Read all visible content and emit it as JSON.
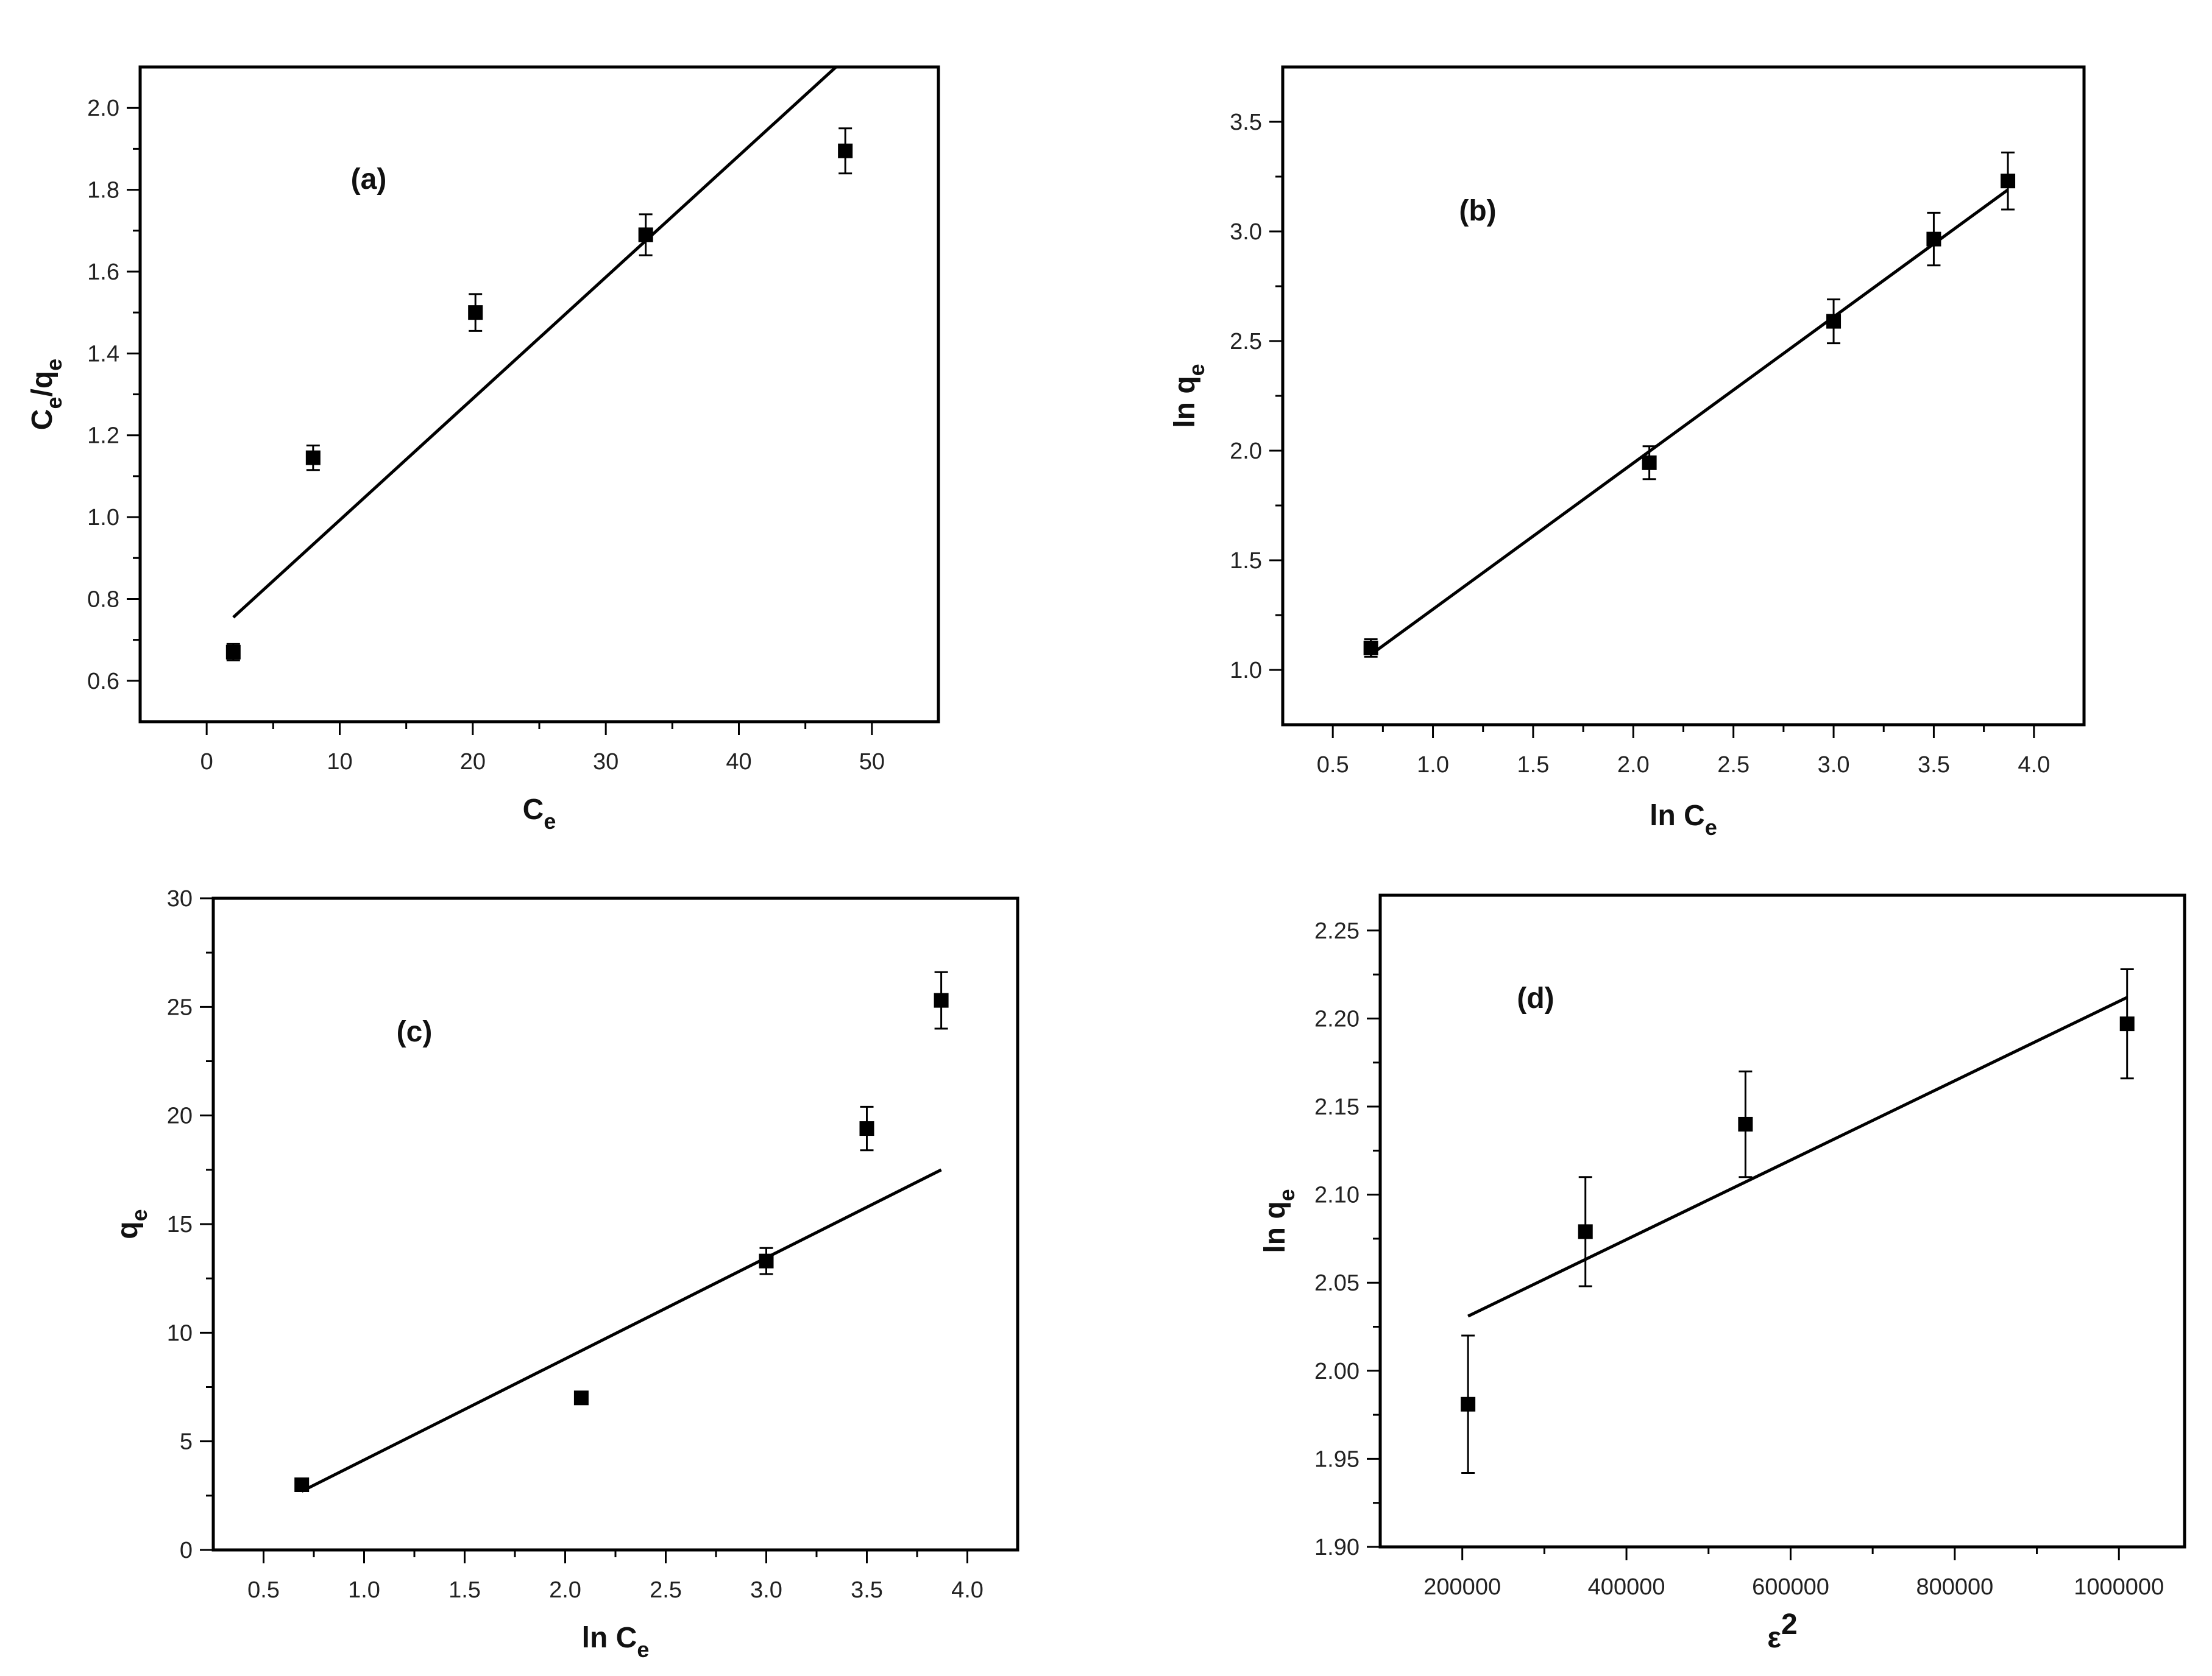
{
  "chart_data": [
    {
      "id": "a",
      "type": "scatter",
      "panel_label": "(a)",
      "xlabel": {
        "main": "C",
        "sub": "e",
        "sup": ""
      },
      "ylabel": {
        "parts": [
          {
            "t": "C",
            "s": "n"
          },
          {
            "t": "e",
            "s": "sub"
          },
          {
            "t": "/q",
            "s": "n"
          },
          {
            "t": "e",
            "s": "sub"
          }
        ]
      },
      "xlim": [
        -5,
        55
      ],
      "ylim": [
        0.5,
        2.1
      ],
      "xticks": [
        0,
        10,
        20,
        30,
        40,
        50
      ],
      "xtick_labels": [
        "0",
        "10",
        "20",
        "30",
        "40",
        "50"
      ],
      "yticks": [
        0.6,
        0.8,
        1.0,
        1.2,
        1.4,
        1.6,
        1.8,
        2.0
      ],
      "ytick_labels": [
        "0.6",
        "0.8",
        "1.0",
        "1.2",
        "1.4",
        "1.6",
        "1.8",
        "2.0"
      ],
      "points": [
        {
          "x": 2,
          "y": 0.67,
          "err": 0.02
        },
        {
          "x": 8,
          "y": 1.145,
          "err": 0.03
        },
        {
          "x": 20.2,
          "y": 1.5,
          "err": 0.045
        },
        {
          "x": 33,
          "y": 1.69,
          "err": 0.05
        },
        {
          "x": 48,
          "y": 1.895,
          "err": 0.055
        }
      ],
      "fit": {
        "x": [
          2,
          47.3
        ],
        "y": [
          0.755,
          2.1
        ]
      }
    },
    {
      "id": "b",
      "type": "scatter",
      "panel_label": "(b)",
      "xlabel": {
        "main": "ln C",
        "sub": "e",
        "sup": ""
      },
      "ylabel": {
        "parts": [
          {
            "t": "ln q",
            "s": "n"
          },
          {
            "t": "e",
            "s": "sub"
          }
        ]
      },
      "xlim": [
        0.25,
        4.25
      ],
      "ylim": [
        0.75,
        3.75
      ],
      "xticks": [
        0.5,
        1.0,
        1.5,
        2.0,
        2.5,
        3.0,
        3.5,
        4.0
      ],
      "xtick_labels": [
        "0.5",
        "1.0",
        "1.5",
        "2.0",
        "2.5",
        "3.0",
        "3.5",
        "4.0"
      ],
      "yticks": [
        1.0,
        1.5,
        2.0,
        2.5,
        3.0,
        3.5
      ],
      "ytick_labels": [
        "1.0",
        "1.5",
        "2.0",
        "2.5",
        "3.0",
        "3.5"
      ],
      "points": [
        {
          "x": 0.69,
          "y": 1.1,
          "err": 0.04
        },
        {
          "x": 2.08,
          "y": 1.945,
          "err": 0.075
        },
        {
          "x": 3.0,
          "y": 2.59,
          "err": 0.1
        },
        {
          "x": 3.5,
          "y": 2.965,
          "err": 0.12
        },
        {
          "x": 3.87,
          "y": 3.23,
          "err": 0.13
        }
      ],
      "fit": {
        "x": [
          0.69,
          3.87
        ],
        "y": [
          1.07,
          3.19
        ]
      }
    },
    {
      "id": "c",
      "type": "scatter",
      "panel_label": "(c)",
      "xlabel": {
        "main": "ln C",
        "sub": "e",
        "sup": ""
      },
      "ylabel": {
        "parts": [
          {
            "t": "q",
            "s": "n"
          },
          {
            "t": "e",
            "s": "sub"
          }
        ]
      },
      "xlim": [
        0.25,
        4.25
      ],
      "ylim": [
        0,
        30
      ],
      "xticks": [
        0.5,
        1.0,
        1.5,
        2.0,
        2.5,
        3.0,
        3.5,
        4.0
      ],
      "xtick_labels": [
        "0.5",
        "1.0",
        "1.5",
        "2.0",
        "2.5",
        "3.0",
        "3.5",
        "4.0"
      ],
      "yticks": [
        0,
        5,
        10,
        15,
        20,
        25,
        30
      ],
      "ytick_labels": [
        "0",
        "5",
        "10",
        "15",
        "20",
        "25",
        "30"
      ],
      "points": [
        {
          "x": 0.69,
          "y": 3.0,
          "err": 0
        },
        {
          "x": 2.08,
          "y": 7.0,
          "err": 0
        },
        {
          "x": 3.0,
          "y": 13.3,
          "err": 0.6
        },
        {
          "x": 3.5,
          "y": 19.4,
          "err": 1.0
        },
        {
          "x": 3.87,
          "y": 25.3,
          "err": 1.3
        }
      ],
      "fit": {
        "x": [
          0.69,
          3.87
        ],
        "y": [
          2.7,
          17.5
        ]
      }
    },
    {
      "id": "d",
      "type": "scatter",
      "panel_label": "(d)",
      "xlabel": {
        "main": "ε",
        "sub": "",
        "sup": "2"
      },
      "ylabel": {
        "parts": [
          {
            "t": "ln q",
            "s": "n"
          },
          {
            "t": "e",
            "s": "sub"
          }
        ]
      },
      "xlim": [
        100000,
        1080000
      ],
      "ylim": [
        1.9,
        2.27
      ],
      "xticks": [
        200000,
        400000,
        600000,
        800000,
        1000000
      ],
      "xtick_labels": [
        "200000",
        "400000",
        "600000",
        "800000",
        "1000000"
      ],
      "yticks": [
        1.9,
        1.95,
        2.0,
        2.05,
        2.1,
        2.15,
        2.2,
        2.25
      ],
      "ytick_labels": [
        "1.90",
        "1.95",
        "2.00",
        "2.05",
        "2.10",
        "2.15",
        "2.20",
        "2.25"
      ],
      "points": [
        {
          "x": 207000,
          "y": 1.981,
          "err": 0.039
        },
        {
          "x": 350000,
          "y": 2.079,
          "err": 0.031
        },
        {
          "x": 545000,
          "y": 2.14,
          "err": 0.03
        },
        {
          "x": 1010000,
          "y": 2.197,
          "err": 0.031
        }
      ],
      "fit": {
        "x": [
          207000,
          1010000
        ],
        "y": [
          2.031,
          2.212
        ]
      }
    }
  ]
}
